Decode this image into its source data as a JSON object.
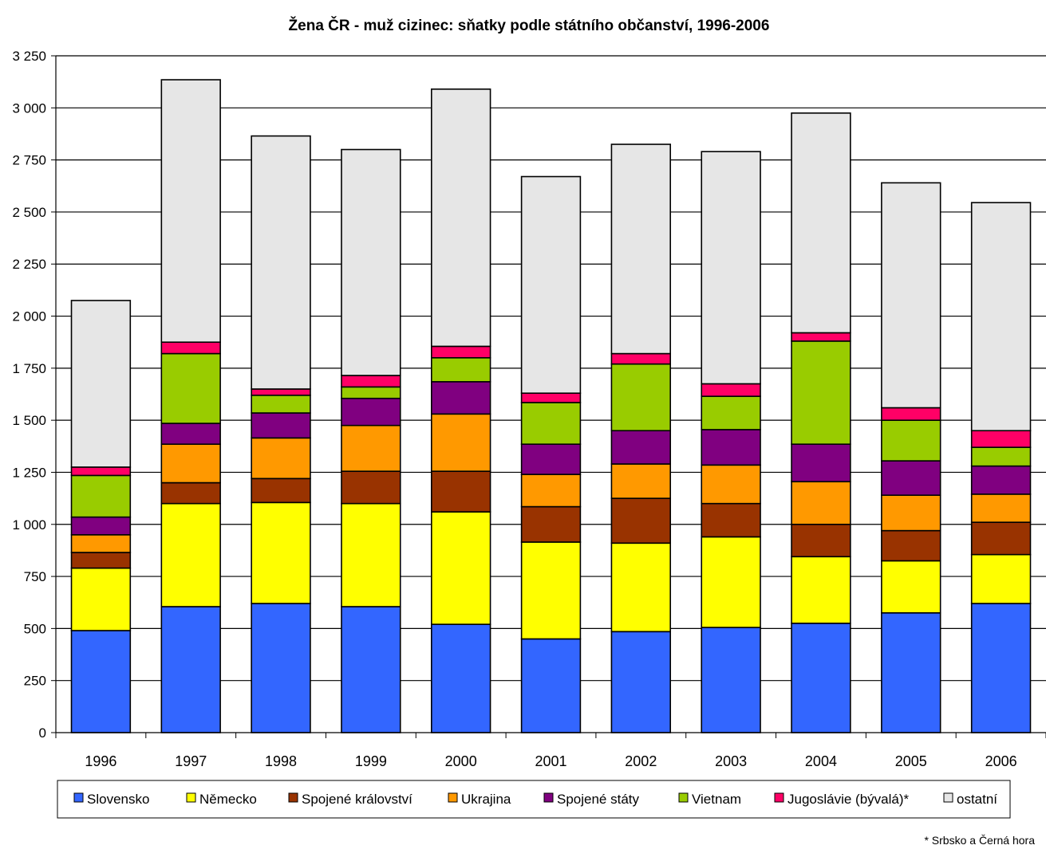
{
  "chart_data": {
    "type": "bar",
    "stacked": true,
    "title": "Žena ČR - muž cizinec: sňatky podle státního občanství, 1996-2006",
    "xlabel": "",
    "ylabel": "",
    "ylim": [
      0,
      3250
    ],
    "ytick_values": [
      0,
      250,
      500,
      750,
      1000,
      1250,
      1500,
      1750,
      2000,
      2250,
      2500,
      2750,
      3000,
      3250
    ],
    "ytick_labels": [
      "0",
      "250",
      "500",
      "750",
      "1 000",
      "1 250",
      "1 500",
      "1 750",
      "2 000",
      "2 250",
      "2 500",
      "2 750",
      "3 000",
      "3 250"
    ],
    "grid": true,
    "legend_position": "bottom",
    "categories": [
      "1996",
      "1997",
      "1998",
      "1999",
      "2000",
      "2001",
      "2002",
      "2003",
      "2004",
      "2005",
      "2006"
    ],
    "series": [
      {
        "name": "Slovensko",
        "color": "#3366ff",
        "values": [
          490,
          605,
          620,
          605,
          520,
          450,
          485,
          505,
          525,
          575,
          620
        ]
      },
      {
        "name": "Německo",
        "color": "#ffff00",
        "values": [
          300,
          495,
          485,
          495,
          540,
          465,
          425,
          435,
          320,
          250,
          235
        ]
      },
      {
        "name": "Spojené království",
        "color": "#993300",
        "values": [
          75,
          100,
          115,
          155,
          195,
          170,
          215,
          160,
          155,
          145,
          155
        ]
      },
      {
        "name": "Ukrajina",
        "color": "#ff9900",
        "values": [
          85,
          185,
          195,
          220,
          275,
          155,
          165,
          185,
          205,
          170,
          135
        ]
      },
      {
        "name": "Spojené státy",
        "color": "#800080",
        "values": [
          85,
          100,
          120,
          130,
          155,
          145,
          160,
          170,
          180,
          165,
          135
        ]
      },
      {
        "name": "Vietnam",
        "color": "#99cc00",
        "values": [
          200,
          335,
          85,
          55,
          115,
          200,
          320,
          160,
          495,
          195,
          90
        ]
      },
      {
        "name": "Jugoslávie (bývalá)*",
        "color": "#ff0066",
        "values": [
          40,
          55,
          30,
          55,
          55,
          45,
          50,
          60,
          40,
          60,
          80
        ]
      },
      {
        "name": "ostatní",
        "color": "#e6e6e6",
        "values": [
          800,
          1260,
          1215,
          1085,
          1235,
          1040,
          1005,
          1115,
          1055,
          1080,
          1095
        ]
      }
    ],
    "footnote": "* Srbsko a Černá hora"
  }
}
